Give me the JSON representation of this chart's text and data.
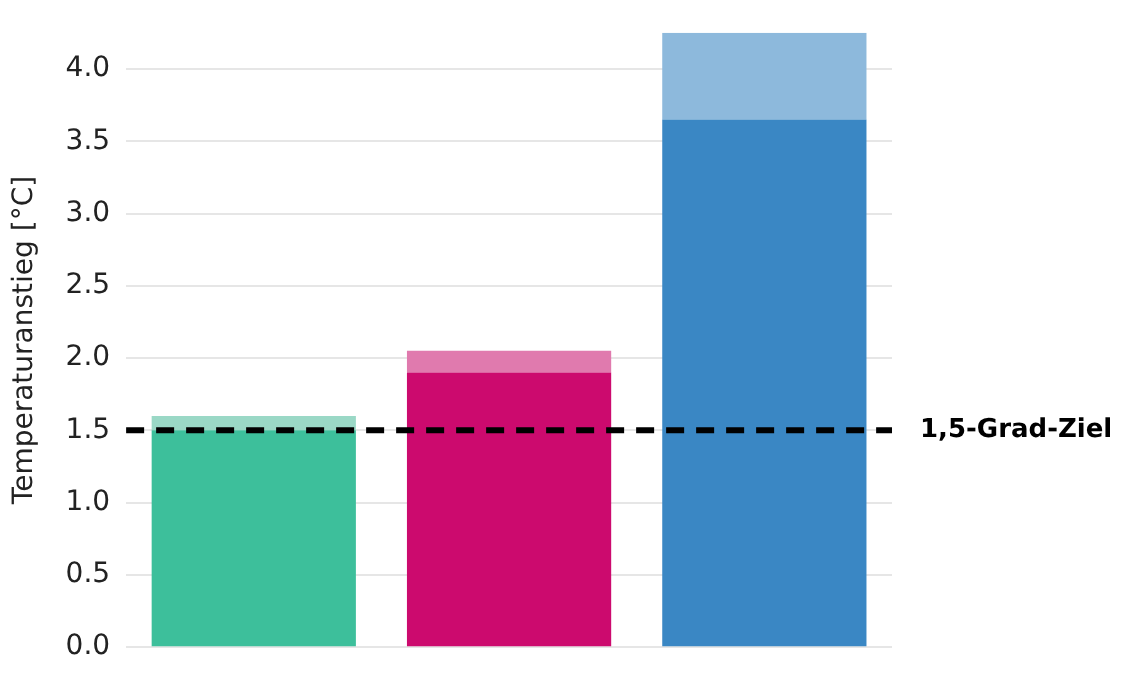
{
  "chart_data": {
    "type": "bar",
    "ylabel": "Temperaturanstieg [°C]",
    "categories": [
      null,
      null,
      null
    ],
    "stacked": true,
    "series": [
      {
        "colors": [
          "#3dbf9b",
          "#cc0a6e",
          "#3a87c4"
        ],
        "values": [
          1.5,
          1.9,
          3.65
        ]
      },
      {
        "colors": [
          "#9ad8c6",
          "#e07aae",
          "#8db9dc"
        ],
        "values": [
          0.1,
          0.15,
          0.6
        ]
      }
    ],
    "ylim": [
      0,
      4.25
    ],
    "yticks": [
      {
        "value": 0,
        "label": "0.0"
      },
      0.5,
      {
        "value": 1,
        "label": "1.0"
      },
      1.5,
      {
        "value": 2,
        "label": "2.0"
      },
      2.5,
      {
        "value": 3,
        "label": "3.0"
      },
      3.5,
      {
        "value": 4,
        "label": "4.0"
      }
    ],
    "grid": "y",
    "ref_lines": [
      {
        "axis": "y",
        "value": 1.5,
        "label": "1,5-Grad-Ziel",
        "color": "#000000",
        "line_style": "dashed"
      }
    ]
  }
}
